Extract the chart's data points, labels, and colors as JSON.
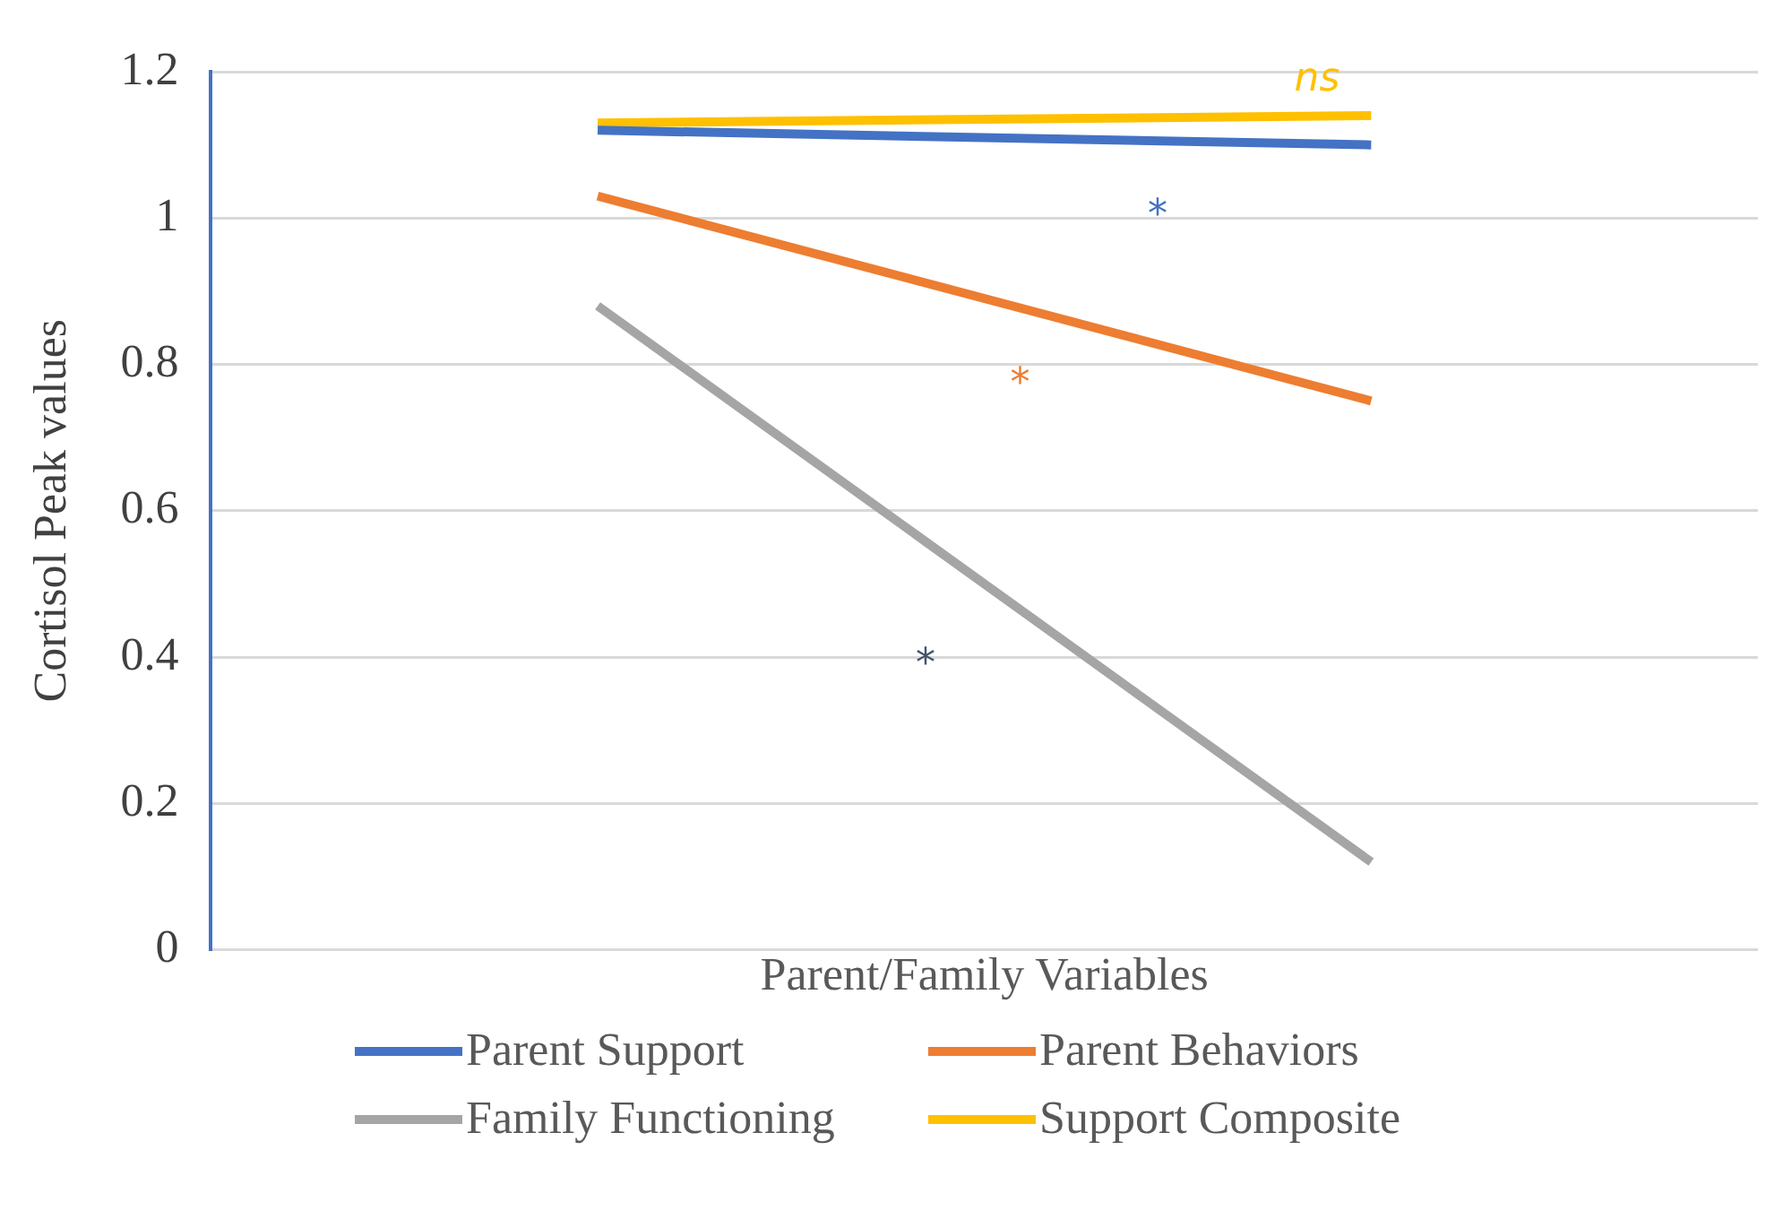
{
  "chart_data": {
    "type": "line",
    "xlabel": "Parent/Family Variables",
    "ylabel": "Cortisol Peak values",
    "categories": [
      null,
      null
    ],
    "series": [
      {
        "name": "Parent Support",
        "color": "#4472c4",
        "values": [
          1.12,
          1.1
        ]
      },
      {
        "name": "Parent Behaviors",
        "color": "#ed7d31",
        "values": [
          1.03,
          0.75
        ]
      },
      {
        "name": "Family Functioning",
        "color": "#a5a5a5",
        "values": [
          0.88,
          0.12
        ]
      },
      {
        "name": "Support Composite",
        "color": "#ffc000",
        "values": [
          1.13,
          1.14
        ]
      }
    ],
    "ylim": [
      0,
      1.2
    ],
    "yticks": [
      0,
      0.2,
      0.4,
      0.6,
      0.8,
      1,
      1.2
    ],
    "grid": "y",
    "legend": "bottom",
    "tick_labels": "y",
    "marker": "none",
    "line_style": "solid",
    "annotations": [
      "ns",
      "*",
      "*",
      "*"
    ]
  }
}
